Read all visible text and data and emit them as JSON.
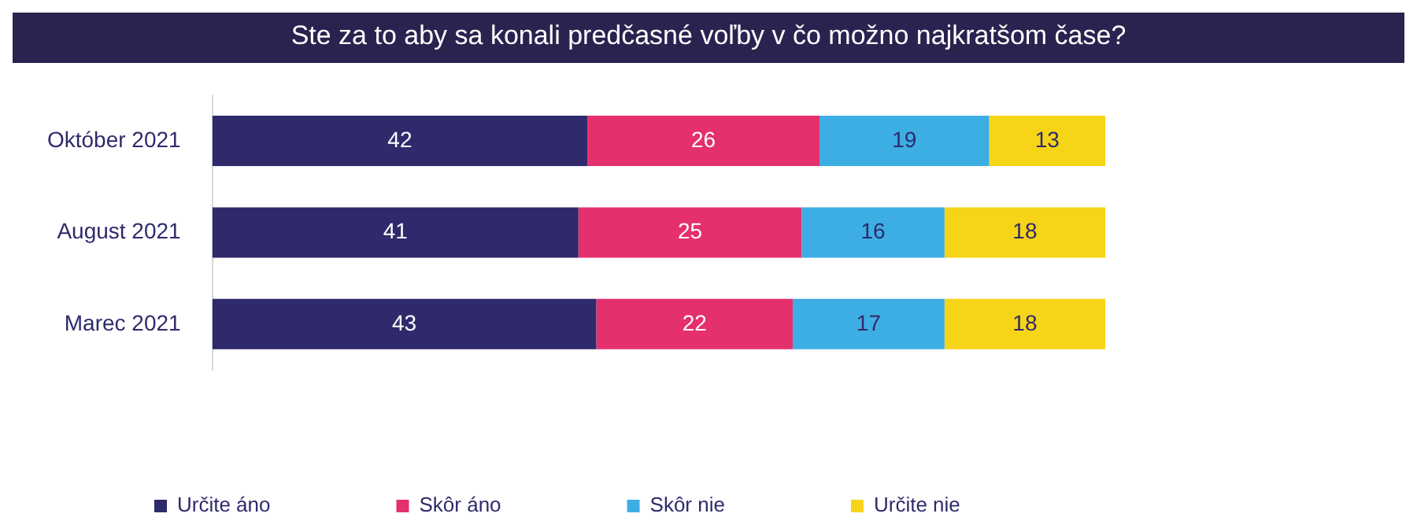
{
  "chart_data": {
    "type": "bar",
    "orientation": "horizontal",
    "stacked": true,
    "title": "Ste za to aby sa konali predčasné voľby v čo možno najkratšom čase?",
    "categories": [
      "Október 2021",
      "August 2021",
      "Marec 2021"
    ],
    "series": [
      {
        "name": "Určite áno",
        "color": "#2e2a6b",
        "values": [
          42,
          41,
          43
        ]
      },
      {
        "name": "Skôr áno",
        "color": "#e5306e",
        "values": [
          26,
          25,
          22
        ]
      },
      {
        "name": "Skôr nie",
        "color": "#3daee3",
        "values": [
          19,
          16,
          17
        ]
      },
      {
        "name": "Určite nie",
        "color": "#f6d417",
        "values": [
          13,
          18,
          18
        ]
      }
    ],
    "data_labels": true,
    "legend": "bottom"
  }
}
